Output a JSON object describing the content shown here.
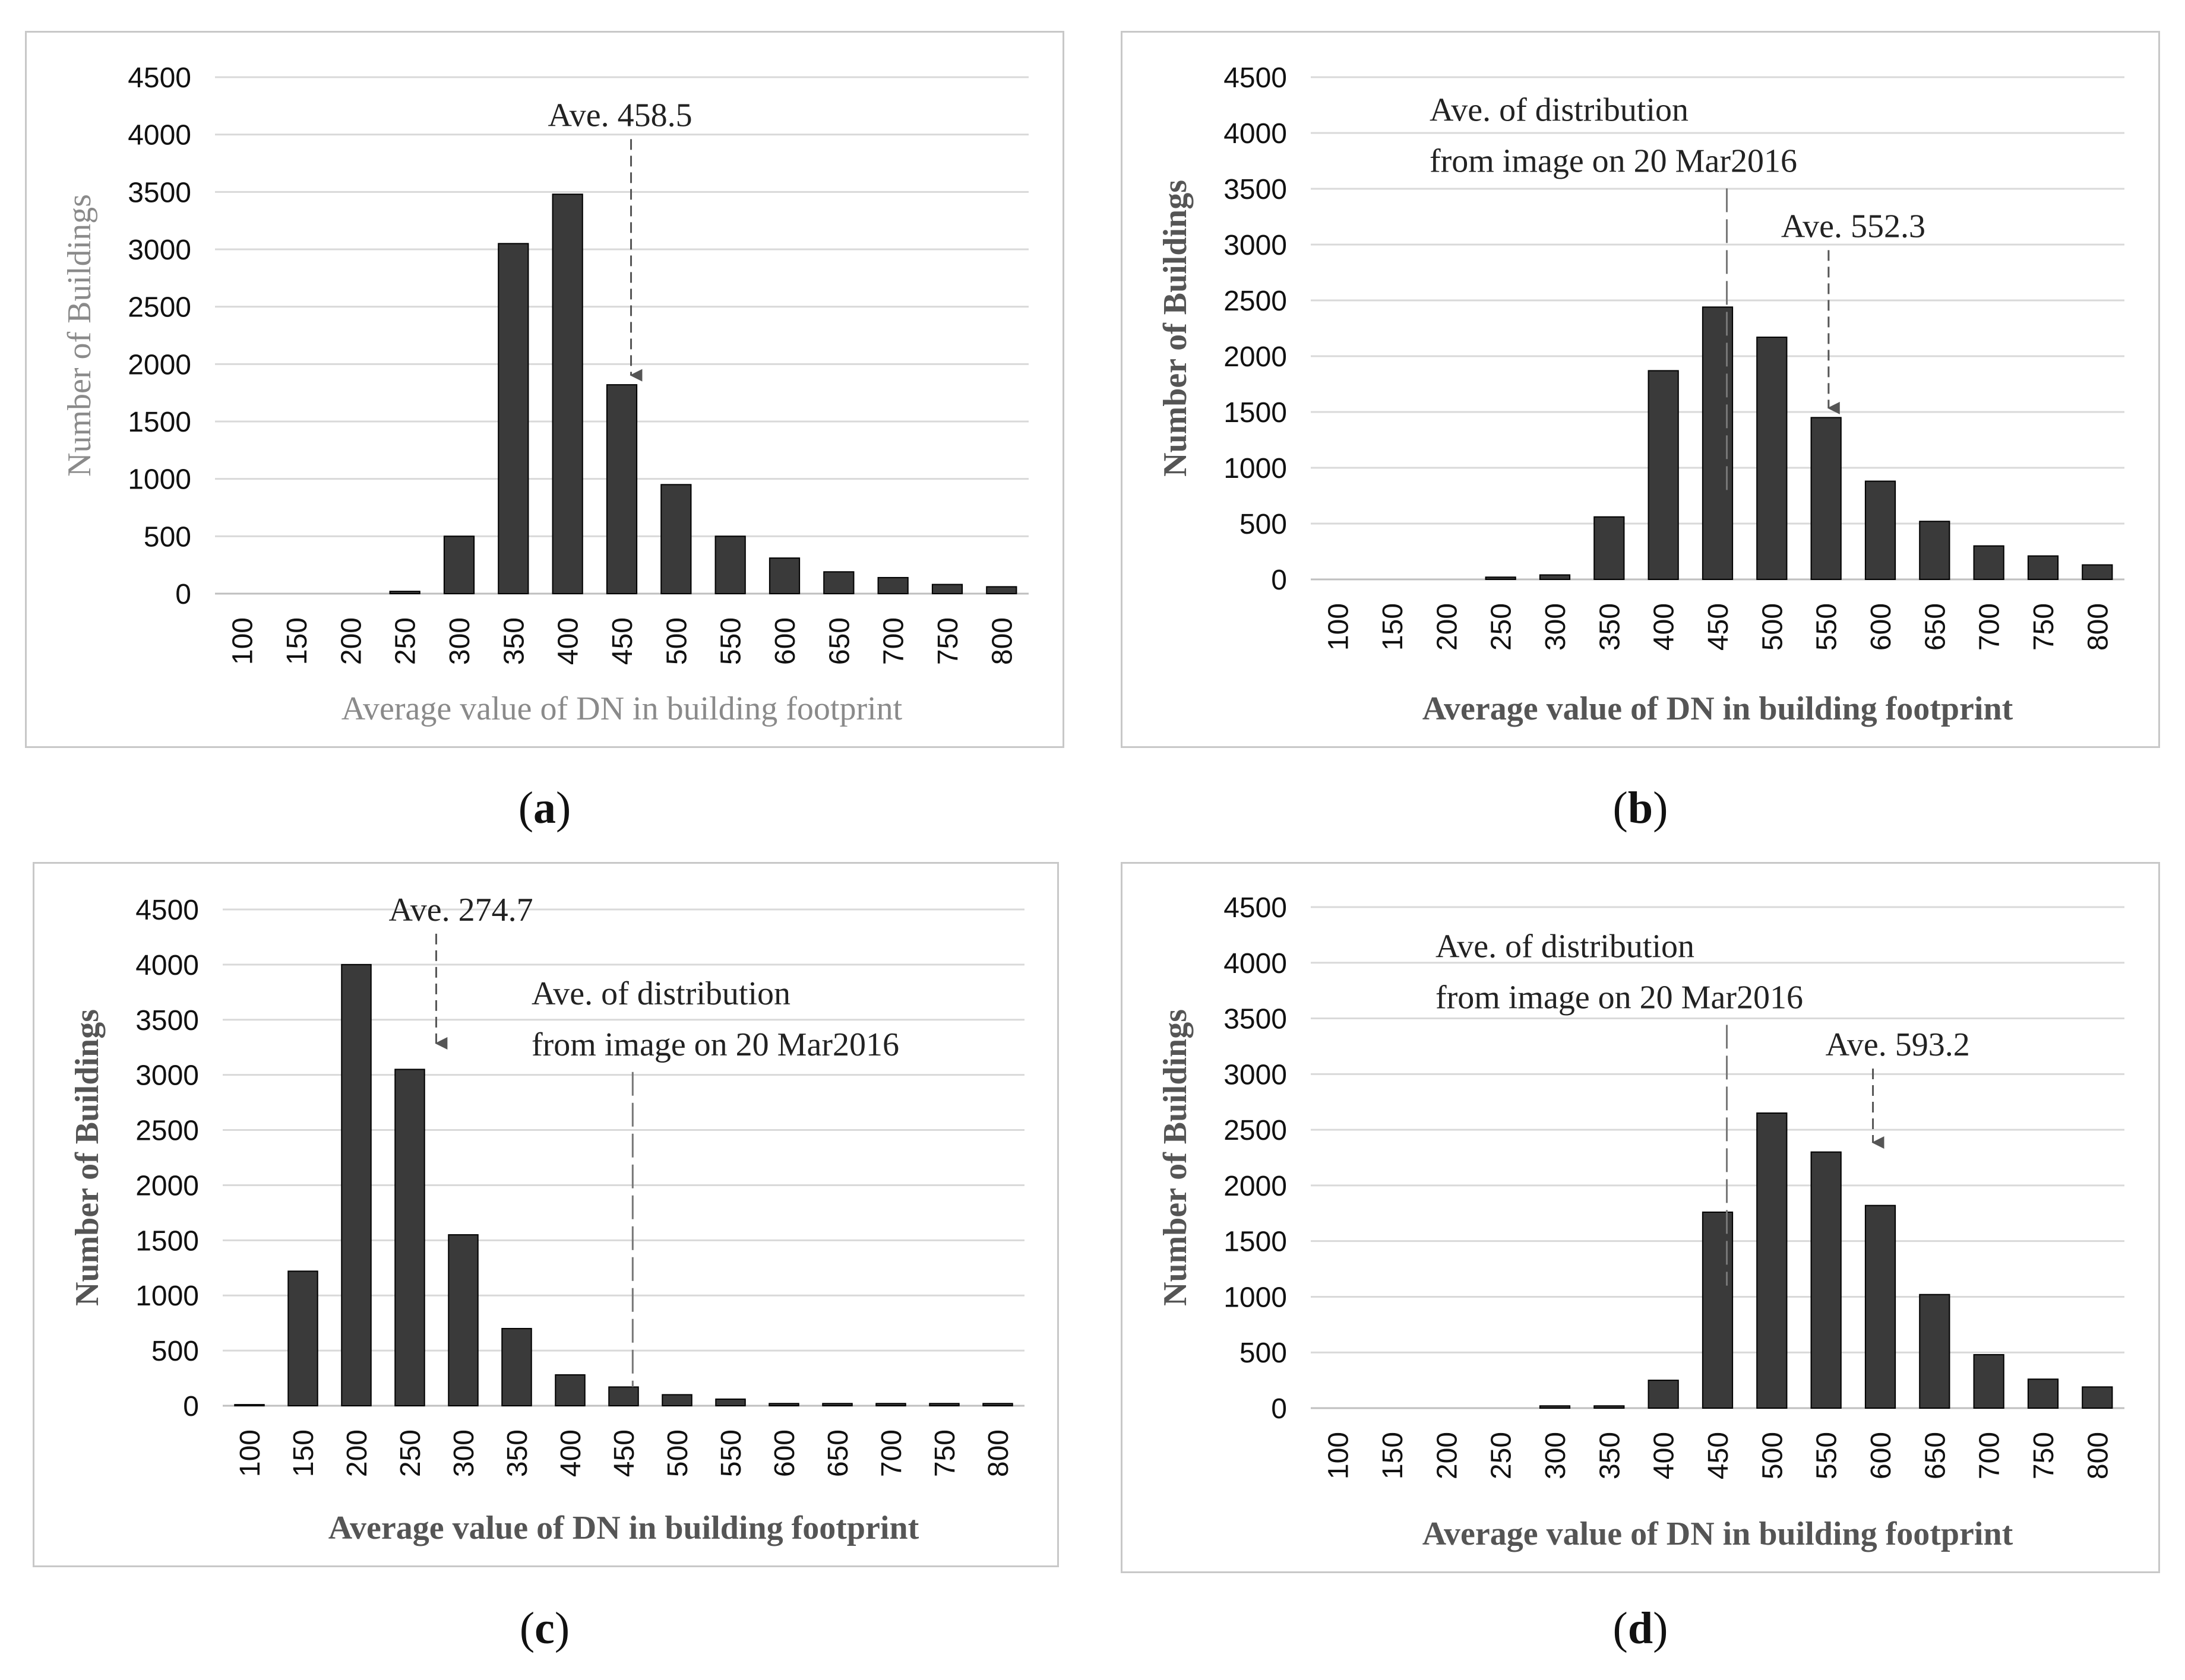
{
  "chart_data": [
    {
      "type": "bar",
      "panel": "a",
      "caption": "a",
      "categories": [
        "100",
        "150",
        "200",
        "250",
        "300",
        "350",
        "400",
        "450",
        "500",
        "550",
        "600",
        "650",
        "700",
        "750",
        "800"
      ],
      "values": [
        0,
        0,
        0,
        20,
        500,
        3050,
        3480,
        1820,
        950,
        500,
        310,
        190,
        140,
        80,
        60
      ],
      "yticks": [
        "0",
        "500",
        "1000",
        "1500",
        "2000",
        "2500",
        "3000",
        "3500",
        "4000",
        "4500"
      ],
      "ylim": [
        0,
        4500
      ],
      "xlabel": "Average value of DN in building footprint",
      "ylabel": "Number of Buildings",
      "annotations": [
        {
          "lines": [
            "Ave. 458.5"
          ],
          "x": 458.5,
          "target": 1820,
          "arrow": true
        }
      ]
    },
    {
      "type": "bar",
      "panel": "b",
      "caption": "b",
      "categories": [
        "100",
        "150",
        "200",
        "250",
        "300",
        "350",
        "400",
        "450",
        "500",
        "550",
        "600",
        "650",
        "700",
        "750",
        "800"
      ],
      "values": [
        0,
        0,
        0,
        20,
        40,
        560,
        1870,
        2440,
        2170,
        1450,
        880,
        520,
        300,
        210,
        130
      ],
      "yticks": [
        "0",
        "500",
        "1000",
        "1500",
        "2000",
        "2500",
        "3000",
        "3500",
        "4000",
        "4500"
      ],
      "ylim": [
        0,
        4500
      ],
      "xlabel": "Average value of DN in building footprint",
      "ylabel": "Number of Buildings",
      "annotations": [
        {
          "lines": [
            "Ave. of distribution",
            "from image on 20 Mar2016"
          ],
          "x": 458.5,
          "target": 800,
          "arrow": false
        },
        {
          "lines": [
            "Ave.  552.3"
          ],
          "x": 552.3,
          "target": 1450,
          "arrow": true
        }
      ]
    },
    {
      "type": "bar",
      "panel": "c",
      "caption": "c",
      "categories": [
        "100",
        "150",
        "200",
        "250",
        "300",
        "350",
        "400",
        "450",
        "500",
        "550",
        "600",
        "650",
        "700",
        "750",
        "800"
      ],
      "values": [
        10,
        1220,
        4000,
        3050,
        1550,
        700,
        280,
        170,
        100,
        60,
        20,
        20,
        20,
        20,
        20
      ],
      "yticks": [
        "0",
        "500",
        "1000",
        "1500",
        "2000",
        "2500",
        "3000",
        "3500",
        "4000",
        "4500"
      ],
      "ylim": [
        0,
        4500
      ],
      "xlabel": "Average value of DN in building footprint",
      "ylabel": "Number of Buildings",
      "annotations": [
        {
          "lines": [
            "Ave.  274.7"
          ],
          "x": 274.7,
          "target": 3200,
          "arrow": true
        },
        {
          "lines": [
            "Ave. of distribution",
            "from image on 20 Mar2016"
          ],
          "x": 458.5,
          "target": 170,
          "arrow": false
        }
      ]
    },
    {
      "type": "bar",
      "panel": "d",
      "caption": "d",
      "categories": [
        "100",
        "150",
        "200",
        "250",
        "300",
        "350",
        "400",
        "450",
        "500",
        "550",
        "600",
        "650",
        "700",
        "750",
        "800"
      ],
      "values": [
        0,
        0,
        0,
        0,
        20,
        20,
        250,
        1760,
        2650,
        2300,
        1820,
        1020,
        480,
        260,
        190
      ],
      "yticks": [
        "0",
        "500",
        "1000",
        "1500",
        "2000",
        "2500",
        "3000",
        "3500",
        "4000",
        "4500"
      ],
      "ylim": [
        0,
        4500
      ],
      "xlabel": "Average value of DN in building footprint",
      "ylabel": "Number of Buildings",
      "annotations": [
        {
          "lines": [
            "Ave. of distribution",
            "from image on 20 Mar2016"
          ],
          "x": 458.5,
          "target": 1100,
          "arrow": false
        },
        {
          "lines": [
            "Ave.  593.2"
          ],
          "x": 593.2,
          "target": 2300,
          "arrow": true
        }
      ]
    }
  ],
  "colors": {
    "bar": "#3a3a3a",
    "grid": "#d9d9d9",
    "arrow": "#555555"
  }
}
